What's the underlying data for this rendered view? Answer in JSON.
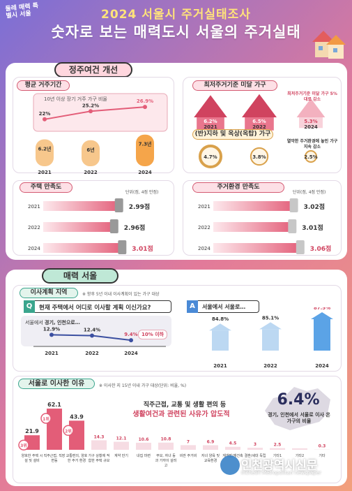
{
  "logo": "둘레 매력 특별시 서울",
  "header": {
    "title1": "2024 서울시 주거실태조사",
    "title2": "숫자로 보는 매력도시 서울의 주거실태"
  },
  "sec1": {
    "title": "정주여건 개선"
  },
  "tenure": {
    "title": "평균 거주기간",
    "line_label": "10년 이상 장기 거주 가구 비율",
    "years": [
      "2021",
      "2022",
      "2024"
    ],
    "line_labels": [
      "22%",
      "25.2%",
      "26.9%"
    ],
    "bar_labels": [
      "6.2년",
      "6년",
      "7.3년"
    ]
  },
  "substd": {
    "title": "최저주거기준 미달 가구",
    "years": [
      "2021",
      "2022",
      "2024"
    ],
    "labels": [
      "6.2%",
      "6.5%",
      "5.3%"
    ],
    "note": "최저주거기준 미달 가구 5%대로 감소"
  },
  "base": {
    "title": "(반)지하 및 옥상(옥탑) 가구",
    "labels": [
      "4.7%",
      "3.8%",
      "2.5%"
    ],
    "note": "열악한 주거환경에 놓인 가구 지속 감소"
  },
  "housing_sat": {
    "title": "주택 만족도",
    "unit": "단위(점, 4점 만점)",
    "years": [
      "2021",
      "2022",
      "2024"
    ],
    "labels": [
      "2.99점",
      "2.96점",
      "3.01점"
    ]
  },
  "env_sat": {
    "title": "주거환경 만족도",
    "unit": "단위(점, 4점 만점)",
    "years": [
      "2021",
      "2022",
      "2024"
    ],
    "labels": [
      "3.02점",
      "3.01점",
      "3.06점"
    ]
  },
  "sec2": {
    "title": "매력 서울"
  },
  "move_plan": {
    "title": "이사계획 지역",
    "note": "※ 향후 5년 이내 이사계획이 있는 가구 대상",
    "q_badge": "Q",
    "question": "현재 주택에서 어디로 이사할 계획 이신가요?",
    "a_badge": "A",
    "answer": "서울에서 서울로…",
    "line_title_pre": "서울에서 ",
    "line_title_bold": "경기, 인천으로…",
    "callout": "10% 이하",
    "years": [
      "2021",
      "2022",
      "2024"
    ],
    "line_labels": [
      "12.9%",
      "12.4%",
      "9.4%"
    ],
    "bar_labels": [
      "84.8%",
      "85.1%",
      "87.5%"
    ]
  },
  "reasons": {
    "title": "서울로 이사한 이유",
    "note": "※ 이사한 지 15년 이내 가구 대상(단위: 비율, %)",
    "headline1": "직주근접, 교통 및 생활 편의 등",
    "headline2": "생활여건과 관련된 사유가 압도적",
    "big_value": "6.4%",
    "big_caption": "경기, 인천에서 서울로 이사 온 가구의 비율",
    "ranks": [
      "1위",
      "2위",
      "3위"
    ]
  },
  "watermark": {
    "name": "인천광역시신문",
    "sub": "Incheon Metropolitan newspaper"
  },
  "chart_data": [
    {
      "type": "line",
      "title": "10년 이상 장기 거주 가구 비율",
      "x": [
        "2021",
        "2022",
        "2024"
      ],
      "values": [
        22,
        25.2,
        26.9
      ]
    },
    {
      "type": "bar",
      "title": "평균 거주기간",
      "categories": [
        "2021",
        "2022",
        "2024"
      ],
      "values": [
        6.2,
        6,
        7.3
      ]
    },
    {
      "type": "bar",
      "title": "최저주거기준 미달 가구",
      "categories": [
        "2021",
        "2022",
        "2024"
      ],
      "values": [
        6.2,
        6.5,
        5.3
      ]
    },
    {
      "type": "bar",
      "title": "(반)지하 및 옥상(옥탑) 가구",
      "categories": [
        "2021",
        "2022",
        "2024"
      ],
      "values": [
        4.7,
        3.8,
        2.5
      ]
    },
    {
      "type": "bar",
      "title": "주택 만족도",
      "categories": [
        "2021",
        "2022",
        "2024"
      ],
      "values": [
        2.99,
        2.96,
        3.01
      ]
    },
    {
      "type": "bar",
      "title": "주거환경 만족도",
      "categories": [
        "2021",
        "2022",
        "2024"
      ],
      "values": [
        3.02,
        3.01,
        3.06
      ]
    },
    {
      "type": "line",
      "title": "서울에서 경기, 인천으로…",
      "x": [
        "2021",
        "2022",
        "2024"
      ],
      "values": [
        12.9,
        12.4,
        9.4
      ]
    },
    {
      "type": "bar",
      "title": "서울에서 서울로…",
      "categories": [
        "2021",
        "2022",
        "2024"
      ],
      "values": [
        84.8,
        85.1,
        87.5
      ]
    },
    {
      "type": "bar",
      "title": "서울로 이사한 이유",
      "categories": [
        "양호한 주택 시설 및 설비",
        "직주근접, 직장 변동",
        "교통편의, 양호한 주거 환경",
        "가구 상황에 적합한 주택 규모",
        "계약 만기",
        "내집 마련",
        "부모, 자녀 등과 가까이 살려고",
        "비싼 주거비",
        "자녀 양육 및 교육환경",
        "재개발/재건축",
        "결혼/세대 독립",
        "기타1",
        "기타2",
        "기타"
      ],
      "values": [
        21.9,
        62.1,
        43.9,
        14.3,
        12.1,
        10.6,
        10.8,
        7,
        6.9,
        4.5,
        3,
        2.5,
        2.2,
        0.3
      ],
      "value_labels": [
        "21.9",
        "62.1",
        "43.9",
        "14.3",
        "12.1",
        "10.6",
        "10.8",
        "7",
        "6.9",
        "4.5",
        "3",
        "2.5",
        "",
        "0.3"
      ]
    }
  ],
  "colors": {
    "accent_pink": "#e35d78",
    "teal": "#3aa58d",
    "gold": "#e9a94b",
    "blue": "#3b73c7"
  }
}
